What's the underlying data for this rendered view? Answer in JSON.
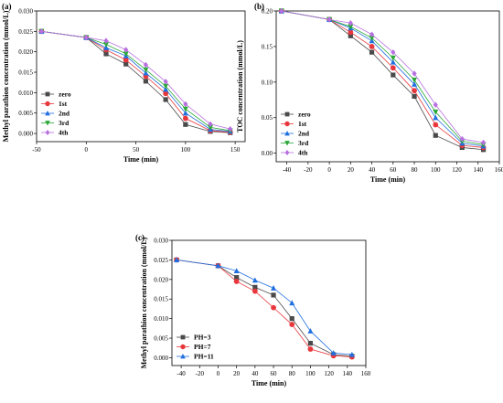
{
  "chart_data": [
    {
      "type": "line",
      "panel_label": "(a)",
      "xlabel": "Time (min)",
      "ylabel": "Methyl parathion concentration (mmol/L)",
      "xlim": [
        -50,
        160
      ],
      "ylim": [
        -0.002,
        0.03
      ],
      "xticks": [
        -50,
        0,
        50,
        100,
        150
      ],
      "yticks": [
        0.0,
        0.005,
        0.01,
        0.015,
        0.02,
        0.025,
        0.03
      ],
      "ytick_decimals": 3,
      "legend_position": "lower-left",
      "series": [
        {
          "name": "zero",
          "color": "#4a4a4a",
          "marker": "square",
          "x": [
            -45,
            0,
            20,
            40,
            60,
            80,
            100,
            125,
            145
          ],
          "y": [
            0.025,
            0.0235,
            0.0195,
            0.017,
            0.0128,
            0.0083,
            0.0022,
            0.0005,
            0.0002
          ]
        },
        {
          "name": "1st",
          "color": "#e8383d",
          "marker": "circle",
          "x": [
            -45,
            0,
            20,
            40,
            60,
            80,
            100,
            125,
            145
          ],
          "y": [
            0.025,
            0.0235,
            0.0205,
            0.018,
            0.014,
            0.0098,
            0.0037,
            0.0007,
            0.0003
          ]
        },
        {
          "name": "2nd",
          "color": "#1f6fe0",
          "marker": "triangle-up",
          "x": [
            -45,
            0,
            20,
            40,
            60,
            80,
            100,
            125,
            145
          ],
          "y": [
            0.025,
            0.0235,
            0.021,
            0.019,
            0.0148,
            0.0108,
            0.005,
            0.001,
            0.0005
          ]
        },
        {
          "name": "3rd",
          "color": "#2aa836",
          "marker": "triangle-down",
          "x": [
            -45,
            0,
            20,
            40,
            60,
            80,
            100,
            125,
            145
          ],
          "y": [
            0.025,
            0.0235,
            0.0218,
            0.0195,
            0.0156,
            0.0116,
            0.006,
            0.0015,
            0.0007
          ]
        },
        {
          "name": "4th",
          "color": "#b86fe0",
          "marker": "diamond",
          "x": [
            -45,
            0,
            20,
            40,
            60,
            80,
            100,
            125,
            145
          ],
          "y": [
            0.025,
            0.0235,
            0.0227,
            0.0205,
            0.0168,
            0.0127,
            0.0072,
            0.0023,
            0.0011
          ]
        }
      ]
    },
    {
      "type": "line",
      "panel_label": "(b)",
      "xlabel": "Time (min)",
      "ylabel": "TOC concentration (mmol/L)",
      "xlim": [
        -50,
        160
      ],
      "ylim": [
        -0.012,
        0.2
      ],
      "xticks": [
        -40,
        -20,
        0,
        20,
        40,
        60,
        80,
        100,
        120,
        140,
        160
      ],
      "yticks": [
        0.0,
        0.05,
        0.1,
        0.15,
        0.2
      ],
      "ytick_decimals": 2,
      "legend_position": "lower-left",
      "series": [
        {
          "name": "zero",
          "color": "#4a4a4a",
          "marker": "square",
          "x": [
            -45,
            0,
            20,
            40,
            60,
            80,
            100,
            125,
            145
          ],
          "y": [
            0.2,
            0.188,
            0.165,
            0.142,
            0.11,
            0.08,
            0.025,
            0.008,
            0.005
          ]
        },
        {
          "name": "1st",
          "color": "#e8383d",
          "marker": "circle",
          "x": [
            -45,
            0,
            20,
            40,
            60,
            80,
            100,
            125,
            145
          ],
          "y": [
            0.2,
            0.188,
            0.17,
            0.15,
            0.12,
            0.088,
            0.04,
            0.011,
            0.008
          ]
        },
        {
          "name": "2nd",
          "color": "#1f6fe0",
          "marker": "triangle-up",
          "x": [
            -45,
            0,
            20,
            40,
            60,
            80,
            100,
            125,
            145
          ],
          "y": [
            0.2,
            0.188,
            0.176,
            0.158,
            0.128,
            0.097,
            0.05,
            0.014,
            0.01
          ]
        },
        {
          "name": "3rd",
          "color": "#2aa836",
          "marker": "triangle-down",
          "x": [
            -45,
            0,
            20,
            40,
            60,
            80,
            100,
            125,
            145
          ],
          "y": [
            0.2,
            0.188,
            0.178,
            0.162,
            0.134,
            0.103,
            0.058,
            0.017,
            0.012
          ]
        },
        {
          "name": "4th",
          "color": "#b86fe0",
          "marker": "diamond",
          "x": [
            -45,
            0,
            20,
            40,
            60,
            80,
            100,
            125,
            145
          ],
          "y": [
            0.2,
            0.188,
            0.183,
            0.167,
            0.142,
            0.112,
            0.068,
            0.02,
            0.015
          ]
        }
      ]
    },
    {
      "type": "line",
      "panel_label": "(c)",
      "xlabel": "Time (min)",
      "ylabel": "Methyl parathion concentration (mmol/L)",
      "xlim": [
        -50,
        160
      ],
      "ylim": [
        -0.002,
        0.03
      ],
      "xticks": [
        -40,
        -20,
        0,
        20,
        40,
        60,
        80,
        100,
        120,
        140,
        160
      ],
      "yticks": [
        0.0,
        0.005,
        0.01,
        0.015,
        0.02,
        0.025,
        0.03
      ],
      "ytick_decimals": 3,
      "legend_position": "lower-left",
      "series": [
        {
          "name": "PH=3",
          "color": "#4a4a4a",
          "marker": "square",
          "x": [
            -45,
            0,
            20,
            40,
            60,
            80,
            100,
            125,
            145
          ],
          "y": [
            0.025,
            0.0235,
            0.0205,
            0.018,
            0.016,
            0.01,
            0.0037,
            0.0008,
            0.0004
          ]
        },
        {
          "name": "PH=7",
          "color": "#e8383d",
          "marker": "circle",
          "x": [
            -45,
            0,
            20,
            40,
            60,
            80,
            100,
            125,
            145
          ],
          "y": [
            0.025,
            0.0235,
            0.0195,
            0.017,
            0.0128,
            0.0085,
            0.0022,
            0.0005,
            0.0002
          ]
        },
        {
          "name": "PH=11",
          "color": "#1f6fe0",
          "marker": "triangle-up",
          "x": [
            -45,
            0,
            20,
            40,
            60,
            80,
            100,
            125,
            145
          ],
          "y": [
            0.025,
            0.0235,
            0.0222,
            0.0198,
            0.0178,
            0.014,
            0.0068,
            0.0012,
            0.0008
          ]
        }
      ]
    }
  ]
}
